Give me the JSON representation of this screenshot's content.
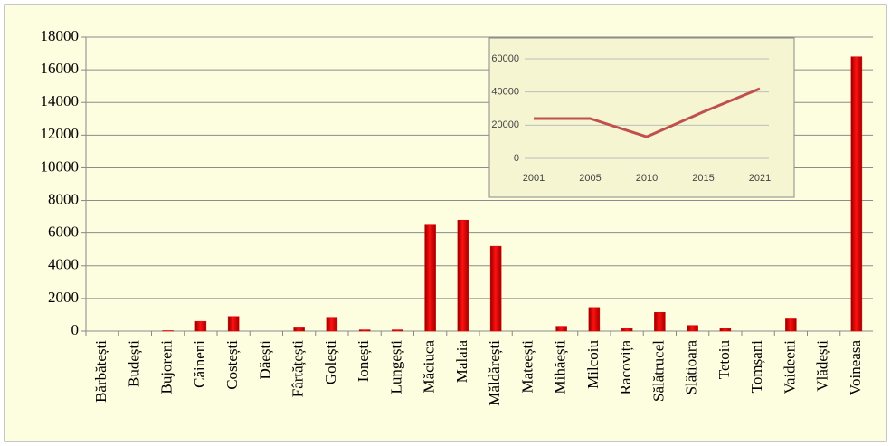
{
  "chart_data": [
    {
      "type": "bar",
      "categories": [
        "Bărbătești",
        "Budești",
        "Bujoreni",
        "Căineni",
        "Costești",
        "Dăești",
        "Fârtățești",
        "Golești",
        "Ionești",
        "Lungești",
        "Măciuca",
        "Malaia",
        "Măldărești",
        "Mateești",
        "Mihăești",
        "Milcoiu",
        "Racovița",
        "Sălătrucel",
        "Slătioara",
        "Tetoiu",
        "Tomșani",
        "Vaideeni",
        "Vlădești",
        "Voineasa"
      ],
      "values": [
        0,
        0,
        30,
        600,
        900,
        0,
        200,
        850,
        80,
        80,
        6500,
        6800,
        5200,
        0,
        300,
        1450,
        150,
        1150,
        350,
        150,
        0,
        750,
        0,
        16800
      ],
      "color": "#e00000",
      "ylim": [
        0,
        18000
      ],
      "yticks": [
        0,
        2000,
        4000,
        6000,
        8000,
        10000,
        12000,
        14000,
        16000,
        18000
      ],
      "grid": true
    },
    {
      "type": "line",
      "categories": [
        "2001",
        "2005",
        "2010",
        "2015",
        "2021"
      ],
      "values": [
        24000,
        24000,
        13000,
        28000,
        42000
      ],
      "color": "#c0504d",
      "ylim": [
        0,
        60000
      ],
      "yticks": [
        0,
        20000,
        40000,
        60000
      ],
      "grid": true
    }
  ]
}
